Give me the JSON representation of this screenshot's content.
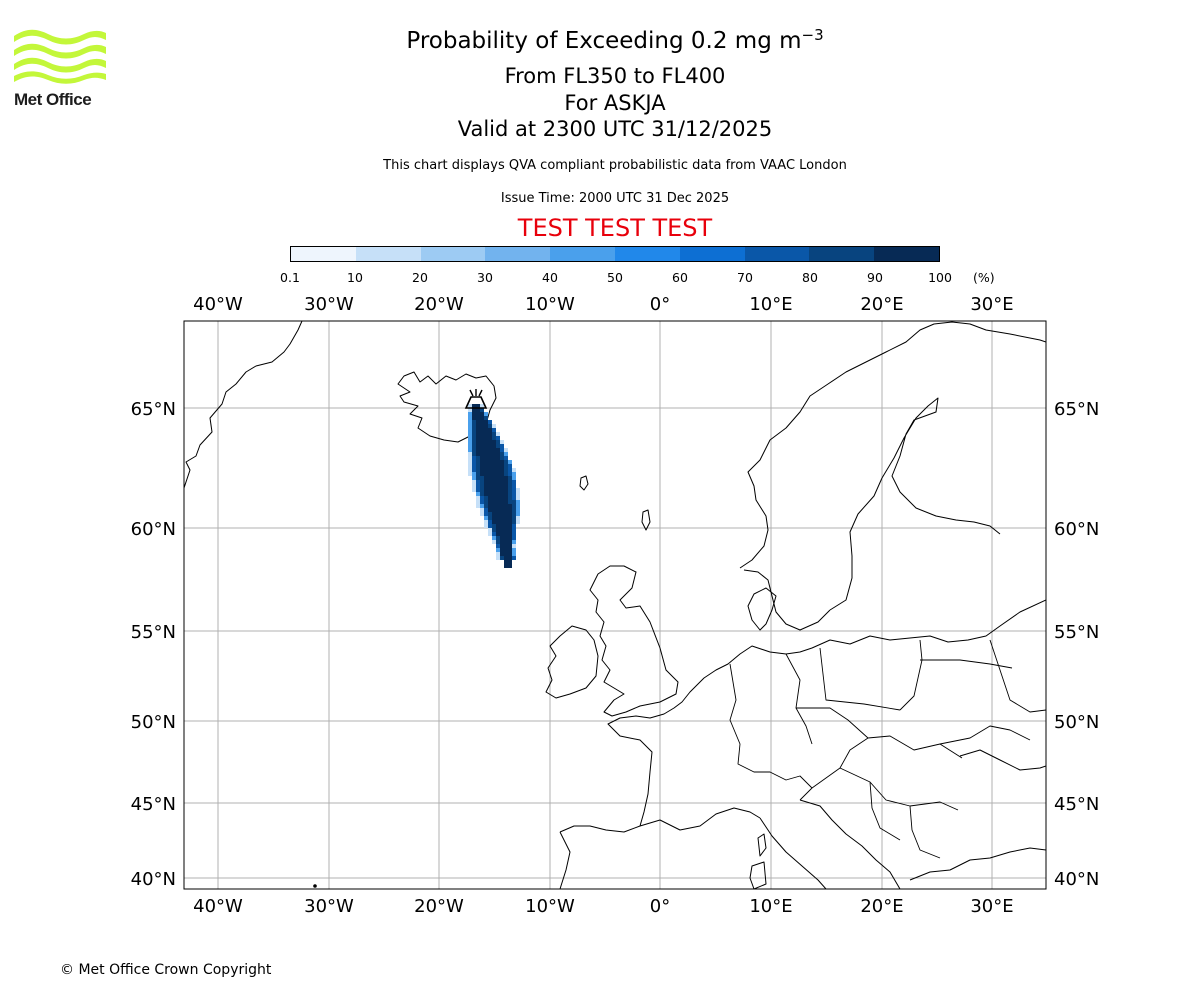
{
  "logo": {
    "text": "Met Office",
    "color": "#c3f73a"
  },
  "header": {
    "title_main": "Probability of Exceeding 0.2 mg m",
    "title_exponent": "−3",
    "levels": "From FL350 to FL400",
    "volcano": "For ASKJA",
    "valid_time": "Valid at 2300 UTC 31/12/2025",
    "disclaimer": "This chart displays QVA compliant probabilistic data from VAAC London",
    "issue_time": "Issue Time: 2000 UTC 31 Dec 2025",
    "test_banner": "TEST TEST TEST",
    "test_color": "#e8000b"
  },
  "colorbar": {
    "ticks": [
      "0.1",
      "10",
      "20",
      "30",
      "40",
      "50",
      "60",
      "70",
      "80",
      "90",
      "100"
    ],
    "unit": "(%)",
    "colors": [
      "#eef5fd",
      "#c6e0f8",
      "#9dcbf3",
      "#72b3ee",
      "#4aa0ec",
      "#2188ea",
      "#0d6fd3",
      "#0a57a8",
      "#08447f",
      "#072a55"
    ]
  },
  "map": {
    "lon_labels": [
      "40°W",
      "30°W",
      "20°W",
      "10°W",
      "0°",
      "10°E",
      "20°E",
      "30°E"
    ],
    "lat_labels": [
      "65°N",
      "60°N",
      "55°N",
      "50°N",
      "45°N",
      "40°N"
    ],
    "volcano_name": "ASKJA",
    "volcano_lat": 65.03,
    "volcano_lon": -16.75
  },
  "footer": {
    "copyright": "© Met Office Crown Copyright"
  }
}
